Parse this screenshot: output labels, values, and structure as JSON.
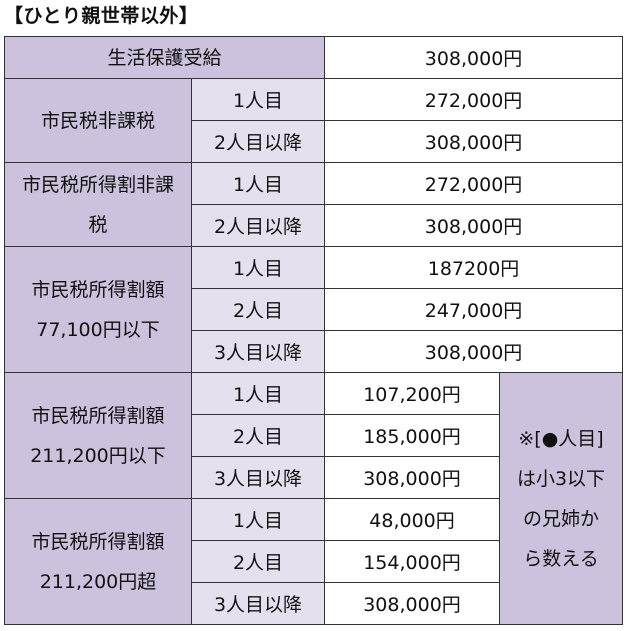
{
  "title": "【ひとり親世帯以外】",
  "rows": {
    "seikatsu": {
      "label": "生活保護受給",
      "value": "308,000円"
    },
    "hikazei": {
      "label": "市民税非課税",
      "items": [
        {
          "sub": "1人目",
          "value": "272,000円"
        },
        {
          "sub": "2人目以降",
          "value": "308,000円"
        }
      ]
    },
    "shotokuwari_hikazei": {
      "label_line1": "市民税所得割非課",
      "label_line2": "税",
      "items": [
        {
          "sub": "1人目",
          "value": "272,000円"
        },
        {
          "sub": "2人目以降",
          "value": "308,000円"
        }
      ]
    },
    "g77100": {
      "label_line1": "市民税所得割額",
      "label_line2": "77,100円以下",
      "items": [
        {
          "sub": "1人目",
          "value": "187200円"
        },
        {
          "sub": "2人目",
          "value": "247,000円"
        },
        {
          "sub": "3人目以降",
          "value": "308,000円"
        }
      ]
    },
    "g211200_le": {
      "label_line1": "市民税所得割額",
      "label_line2": "211,200円以下",
      "items": [
        {
          "sub": "1人目",
          "value": "107,200円"
        },
        {
          "sub": "2人目",
          "value": "185,000円"
        },
        {
          "sub": "3人目以降",
          "value": "308,000円"
        }
      ]
    },
    "g211200_gt": {
      "label_line1": "市民税所得割額",
      "label_line2": "211,200円超",
      "items": [
        {
          "sub": "1人目",
          "value": "48,000円"
        },
        {
          "sub": "2人目",
          "value": "154,000円"
        },
        {
          "sub": "3人目以降",
          "value": "308,000円"
        }
      ]
    }
  },
  "note": {
    "line1": "※[●人目]",
    "line2": "は小3以下",
    "line3": "の兄姉か",
    "line4": "ら数える"
  }
}
